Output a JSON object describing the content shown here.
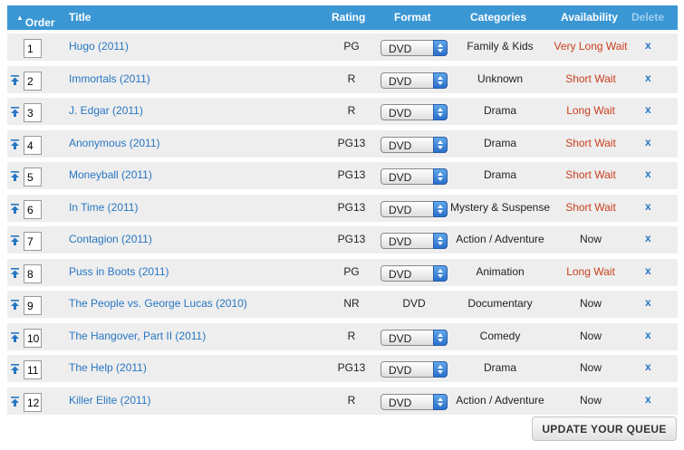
{
  "header": {
    "order": "Order",
    "title": "Title",
    "rating": "Rating",
    "format": "Format",
    "categories": "Categories",
    "availability": "Availability",
    "delete": "Delete"
  },
  "rows": [
    {
      "order": "1",
      "title": "Hugo (2011)",
      "rating": "PG",
      "format": "DVD",
      "format_select": true,
      "category": "Family & Kids",
      "availability": "Very Long Wait",
      "wait": true,
      "delete": "x"
    },
    {
      "order": "2",
      "title": "Immortals (2011)",
      "rating": "R",
      "format": "DVD",
      "format_select": true,
      "category": "Unknown",
      "availability": "Short Wait",
      "wait": true,
      "delete": "x"
    },
    {
      "order": "3",
      "title": "J. Edgar (2011)",
      "rating": "R",
      "format": "DVD",
      "format_select": true,
      "category": "Drama",
      "availability": "Long Wait",
      "wait": true,
      "delete": "x"
    },
    {
      "order": "4",
      "title": "Anonymous (2011)",
      "rating": "PG13",
      "format": "DVD",
      "format_select": true,
      "category": "Drama",
      "availability": "Short Wait",
      "wait": true,
      "delete": "x"
    },
    {
      "order": "5",
      "title": "Moneyball (2011)",
      "rating": "PG13",
      "format": "DVD",
      "format_select": true,
      "category": "Drama",
      "availability": "Short Wait",
      "wait": true,
      "delete": "x"
    },
    {
      "order": "6",
      "title": "In Time (2011)",
      "rating": "PG13",
      "format": "DVD",
      "format_select": true,
      "category": "Mystery & Suspense",
      "availability": "Short Wait",
      "wait": true,
      "delete": "x"
    },
    {
      "order": "7",
      "title": "Contagion (2011)",
      "rating": "PG13",
      "format": "DVD",
      "format_select": true,
      "category": "Action / Adventure",
      "availability": "Now",
      "wait": false,
      "delete": "x"
    },
    {
      "order": "8",
      "title": "Puss in Boots (2011)",
      "rating": "PG",
      "format": "DVD",
      "format_select": true,
      "category": "Animation",
      "availability": "Long Wait",
      "wait": true,
      "delete": "x"
    },
    {
      "order": "9",
      "title": "The People vs. George Lucas (2010)",
      "rating": "NR",
      "format": "DVD",
      "format_select": false,
      "category": "Documentary",
      "availability": "Now",
      "wait": false,
      "delete": "x"
    },
    {
      "order": "10",
      "title": "The Hangover, Part II (2011)",
      "rating": "R",
      "format": "DVD",
      "format_select": true,
      "category": "Comedy",
      "availability": "Now",
      "wait": false,
      "delete": "x"
    },
    {
      "order": "11",
      "title": "The Help (2011)",
      "rating": "PG13",
      "format": "DVD",
      "format_select": true,
      "category": "Drama",
      "availability": "Now",
      "wait": false,
      "delete": "x"
    },
    {
      "order": "12",
      "title": "Killer Elite (2011)",
      "rating": "R",
      "format": "DVD",
      "format_select": true,
      "category": "Action / Adventure",
      "availability": "Now",
      "wait": false,
      "delete": "x"
    }
  ],
  "update_button": "UPDATE YOUR QUEUE",
  "colors": {
    "header_bg": "#3a97d4",
    "link": "#2776c2",
    "wait": "#c9401e",
    "row_bg": "#eeeeee"
  }
}
